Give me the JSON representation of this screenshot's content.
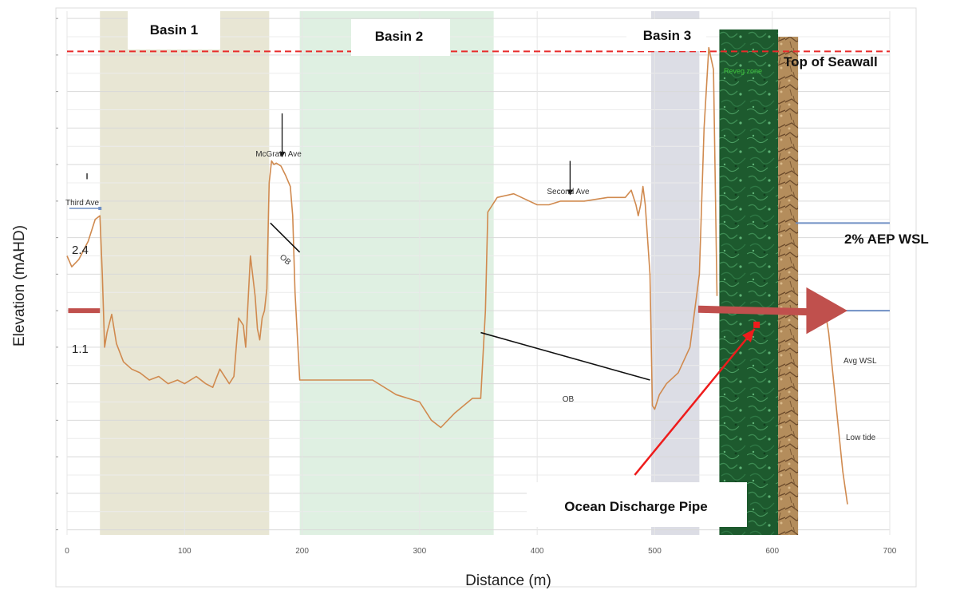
{
  "chart_data": {
    "type": "line",
    "xlabel": "Distance (m)",
    "ylabel": "Elevation (mAHD)",
    "xlim": [
      0,
      700
    ],
    "xticks": [
      0,
      100,
      200,
      300,
      400,
      500,
      600,
      700
    ],
    "grid": true,
    "y_value_labels": [
      {
        "text": "2.4",
        "value": 2.4
      },
      {
        "text": "1.1",
        "value": 1.1
      }
    ],
    "basins": [
      {
        "name": "Basin 1",
        "x_start": 28,
        "x_end": 172,
        "color": "#e8e6d4"
      },
      {
        "name": "Basin 2",
        "x_start": 198,
        "x_end": 363,
        "color": "#dff0e2"
      },
      {
        "name": "Basin 3",
        "x_start": 497,
        "x_end": 538,
        "color": "#dcdde5"
      }
    ],
    "zones": [
      {
        "name": "Reveg zone",
        "x_start": 555,
        "x_end": 605,
        "color": "#1f5e30"
      },
      {
        "name": "seawall rock",
        "x_start": 605,
        "x_end": 622,
        "color": "#b08a5a"
      }
    ],
    "series": [
      {
        "color": "#d08a4f",
        "x": [
          0,
          4,
          10,
          18,
          24,
          28,
          30,
          32,
          34,
          38,
          42,
          48,
          55,
          62,
          70,
          78,
          86,
          94,
          100,
          110,
          118,
          124,
          130,
          138,
          142,
          146,
          150,
          152,
          156,
          160,
          162,
          164,
          166,
          168,
          170,
          172,
          174,
          176,
          178,
          182,
          186,
          190,
          192,
          194,
          198,
          200,
          220,
          260,
          280,
          300,
          310,
          318,
          330,
          345,
          352,
          356,
          358,
          362,
          366,
          380,
          400,
          410,
          420,
          440,
          460,
          475,
          480,
          484,
          486,
          488,
          490,
          492,
          496,
          498,
          500,
          504,
          510,
          520,
          530,
          538,
          542,
          546,
          550,
          553
        ],
        "y": [
          1.75,
          1.6,
          1.7,
          1.95,
          2.25,
          2.3,
          1.5,
          0.5,
          0.7,
          0.95,
          0.55,
          0.3,
          0.2,
          0.15,
          0.05,
          0.1,
          0.0,
          0.05,
          0.0,
          0.1,
          0.0,
          -0.05,
          0.2,
          0.0,
          0.1,
          0.9,
          0.8,
          0.5,
          1.75,
          1.2,
          0.75,
          0.6,
          0.9,
          1.0,
          1.3,
          2.75,
          3.05,
          3.0,
          3.02,
          2.98,
          2.85,
          2.7,
          2.3,
          1.25,
          0.05,
          0.05,
          0.05,
          0.05,
          -0.15,
          -0.25,
          -0.5,
          -0.6,
          -0.4,
          -0.2,
          -0.2,
          1.0,
          2.35,
          2.45,
          2.55,
          2.6,
          2.45,
          2.45,
          2.5,
          2.5,
          2.55,
          2.55,
          2.65,
          2.45,
          2.3,
          2.45,
          2.7,
          2.45,
          1.5,
          -0.3,
          -0.35,
          -0.15,
          0.0,
          0.15,
          0.5,
          1.5,
          3.5,
          4.6,
          4.3,
          1.2
        ]
      },
      {
        "color": "#d08a4f",
        "x": [
          645,
          648,
          655,
          660,
          664
        ],
        "y": [
          1.0,
          0.7,
          -0.4,
          -1.2,
          -1.65
        ]
      }
    ],
    "reference_lines": [
      {
        "label": "Top of Seawall",
        "value": 4.55,
        "style": "dashed",
        "color": "#e82b2b"
      },
      {
        "label": "2% AEP WSL",
        "value": 2.2,
        "x_start": 620,
        "x_end": 700,
        "color": "#6f8fc4"
      },
      {
        "label": "Avg WSL",
        "value": 1.0,
        "x_start": 634,
        "x_end": 700,
        "color": "#6f8fc4"
      }
    ],
    "annotations": [
      {
        "text": "Third Ave",
        "x": 15,
        "y": 2.95
      },
      {
        "text": "McGrath Ave",
        "x": 180,
        "y": 3.9
      },
      {
        "text": "Second Ave",
        "x": 432,
        "y": 3.25
      },
      {
        "text": "OB",
        "x": 184,
        "y": 2.25
      },
      {
        "text": "OB",
        "x": 432,
        "y": 0.6
      },
      {
        "text": "Low tide",
        "x": 667,
        "y": -0.45
      },
      {
        "text": "Avg WSL",
        "x": 665,
        "y": 1.15
      },
      {
        "text": "Reveg zone",
        "x": 580,
        "y": 4.75
      },
      {
        "text": "Ocean Discharge Pipe",
        "x": 560,
        "y": -1.35
      }
    ]
  },
  "labels": {
    "basin1": "Basin 1",
    "basin2": "Basin 2",
    "basin3": "Basin 3",
    "top_of_seawall": "Top of Seawall",
    "aep_wsl": "2% AEP WSL",
    "avg_wsl": "Avg WSL",
    "reveg_zone": "Reveg zone",
    "ocean_discharge_pipe": "Ocean Discharge Pipe",
    "low_tide": "Low tide",
    "third_ave": "Third Ave",
    "mcgrath_ave": "McGrath Ave",
    "second_ave": "Second Ave",
    "ob": "OB",
    "y_label_24": "2.4",
    "y_label_11": "1.1",
    "xlabel": "Distance (m)",
    "ylabel": "Elevation (mAHD)"
  },
  "colors": {
    "profile": "#d08a4f",
    "seawall_dash": "#e82b2b",
    "wsl_line": "#6f8fc4",
    "big_arrow": "#c0504d",
    "pipe_arrow": "#ee1c1c",
    "reveg_label": "#3fc43f"
  }
}
